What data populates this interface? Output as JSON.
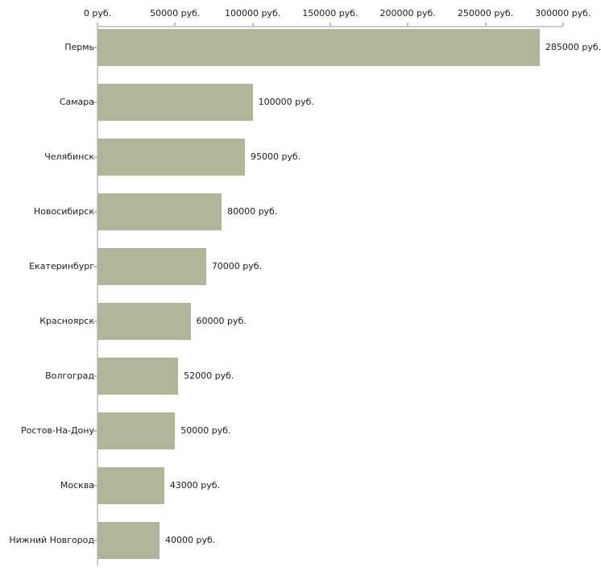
{
  "chart_data": {
    "type": "bar",
    "orientation": "horizontal",
    "title": "",
    "xlabel": "",
    "ylabel": "",
    "unit": "руб.",
    "categories": [
      "Пермь",
      "Самара",
      "Челябинск",
      "Новосибирск",
      "Екатеринбург",
      "Красноярск",
      "Волгоград",
      "Ростов-На-Дону",
      "Москва",
      "Нижний Новгород"
    ],
    "values": [
      285000,
      100000,
      95000,
      80000,
      70000,
      60000,
      52000,
      50000,
      43000,
      40000
    ],
    "bar_labels": [
      "285000 руб.",
      "100000 руб.",
      "95000 руб.",
      "80000 руб.",
      "70000 руб.",
      "60000 руб.",
      "52000 руб.",
      "50000 руб.",
      "43000 руб.",
      "40000 руб."
    ],
    "x_ticks": [
      0,
      50000,
      100000,
      150000,
      200000,
      250000,
      300000
    ],
    "x_tick_labels": [
      "0 руб.",
      "50000 руб.",
      "100000 руб.",
      "150000 руб.",
      "200000 руб.",
      "250000 руб.",
      "300000 руб."
    ],
    "xlim": [
      0,
      300000
    ],
    "grid": false,
    "legend": "none",
    "colors": {
      "bar_fill": "#b1b69b",
      "axis_line": "#cccccc",
      "tick_mark": "#c6c29a",
      "text": "#1b1b1b",
      "background": "#ffffff"
    }
  }
}
